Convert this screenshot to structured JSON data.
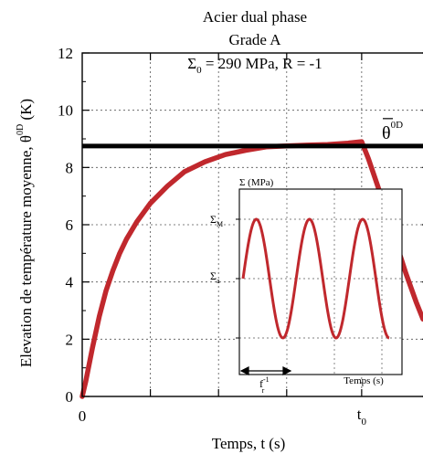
{
  "chart_data": {
    "type": "line",
    "title_lines": [
      "Acier dual phase",
      "Grade A"
    ],
    "param_sigma": "Σ",
    "param_sub": "0",
    "param_rest": " = 290 MPa, R = -1",
    "xlabel": "Temps, t (s)",
    "ylabel_main": "Elevation de température moyenne, θ",
    "ylabel_sup": "0D",
    "ylabel_unit": " (K)",
    "ylim": [
      0,
      12
    ],
    "yticks": [
      "0",
      "2",
      "4",
      "6",
      "8",
      "10",
      "12"
    ],
    "x_tick_zero": "0",
    "x_tick_t0": "t",
    "x_tick_t0_sub": "0",
    "x_tick_t0_at": 0.82,
    "plateau_value": 8.75,
    "plateau_label": "θ",
    "plateau_label_sup": "0D",
    "series": [
      {
        "x": [
          0,
          0.01,
          0.03,
          0.05,
          0.07,
          0.09,
          0.11,
          0.13,
          0.16,
          0.2,
          0.25,
          0.3,
          0.36,
          0.42,
          0.48,
          0.54,
          0.6,
          0.66,
          0.72,
          0.78,
          0.82,
          0.84,
          0.86,
          0.88,
          0.9,
          0.92,
          0.95,
          0.98,
          1.0
        ],
        "y": [
          0,
          0.5,
          1.7,
          2.8,
          3.7,
          4.4,
          5.0,
          5.5,
          6.1,
          6.75,
          7.35,
          7.85,
          8.2,
          8.45,
          8.6,
          8.72,
          8.75,
          8.78,
          8.8,
          8.85,
          8.9,
          8.3,
          7.6,
          6.9,
          6.2,
          5.4,
          4.3,
          3.3,
          2.7
        ],
        "color": "#c0282d"
      }
    ],
    "inset": {
      "ylabel": "Σ (MPa)",
      "tick_sigma": "Σ",
      "tick_max_sub": "M",
      "tick_a_sub": "a",
      "xlabel": "Temps  (s)",
      "period_f": "f",
      "period_sub": "r",
      "period_sup": "-1",
      "cycles": 2.75,
      "color": "#c0282d"
    }
  }
}
